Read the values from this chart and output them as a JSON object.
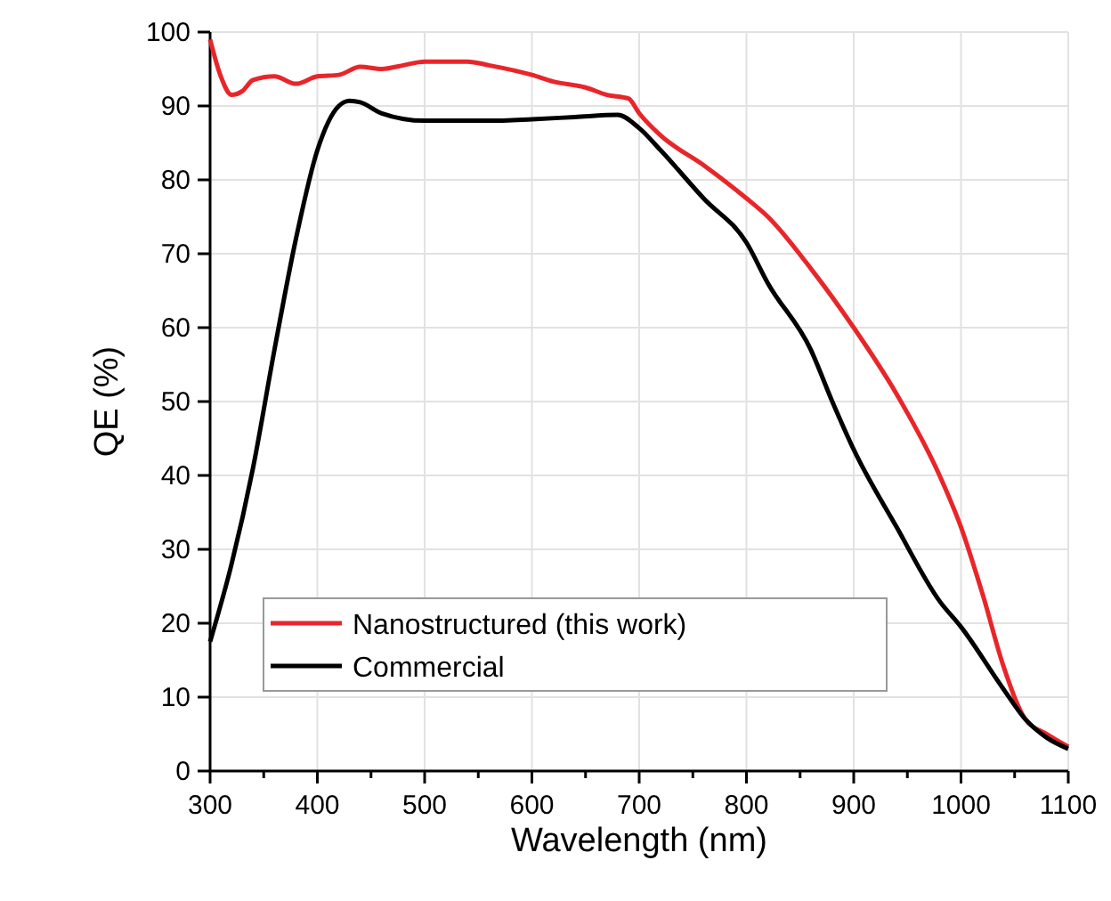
{
  "chart_data": {
    "type": "line",
    "xlabel": "Wavelength (nm)",
    "ylabel": "QE (%)",
    "xlim": [
      300,
      1100
    ],
    "ylim": [
      0,
      100
    ],
    "xticks": [
      300,
      {
        "value": 350,
        "label": null
      },
      400,
      {
        "value": 450,
        "label": null
      },
      500,
      {
        "value": 550,
        "label": null
      },
      600,
      {
        "value": 650,
        "label": null
      },
      700,
      {
        "value": 750,
        "label": null
      },
      800,
      {
        "value": 850,
        "label": null
      },
      900,
      {
        "value": 950,
        "label": null
      },
      1000,
      {
        "value": 1050,
        "label": null
      },
      1100
    ],
    "yticks": [
      0,
      10,
      20,
      30,
      40,
      50,
      60,
      70,
      80,
      90,
      100
    ],
    "grid": true,
    "legend": "bottom left",
    "line_style": "solid",
    "series": [
      {
        "name": "Nanostructured (this work)",
        "color": "#e8262a",
        "x": [
          300,
          310,
          320,
          330,
          340,
          360,
          380,
          400,
          420,
          440,
          460,
          480,
          500,
          540,
          560,
          600,
          620,
          650,
          670,
          690,
          700,
          720,
          760,
          800,
          820,
          860,
          900,
          940,
          980,
          1000,
          1020,
          1040,
          1060,
          1080,
          1100
        ],
        "values": [
          99,
          94,
          91.5,
          92,
          93.5,
          94,
          93,
          94,
          94.2,
          95.3,
          95,
          95.5,
          96,
          96,
          95.5,
          94.2,
          93.3,
          92.5,
          91.5,
          91,
          89,
          86,
          82,
          77.5,
          75,
          68,
          60,
          51,
          40,
          33,
          24,
          14,
          7,
          5,
          3.3
        ]
      },
      {
        "name": "Commercial",
        "color": "#000000",
        "x": [
          300,
          320,
          340,
          360,
          380,
          400,
          420,
          430,
          440,
          460,
          500,
          560,
          600,
          640,
          680,
          700,
          720,
          760,
          800,
          820,
          860,
          880,
          900,
          940,
          980,
          1000,
          1040,
          1060,
          1080,
          1100
        ],
        "values": [
          17.5,
          28,
          41,
          57,
          72,
          84,
          90,
          90.7,
          90.5,
          89,
          88,
          88,
          88.2,
          88.5,
          88.8,
          87,
          84,
          77.5,
          71.5,
          66,
          57,
          50,
          43.5,
          33,
          23,
          19.5,
          11,
          7,
          4.5,
          3
        ]
      }
    ]
  }
}
